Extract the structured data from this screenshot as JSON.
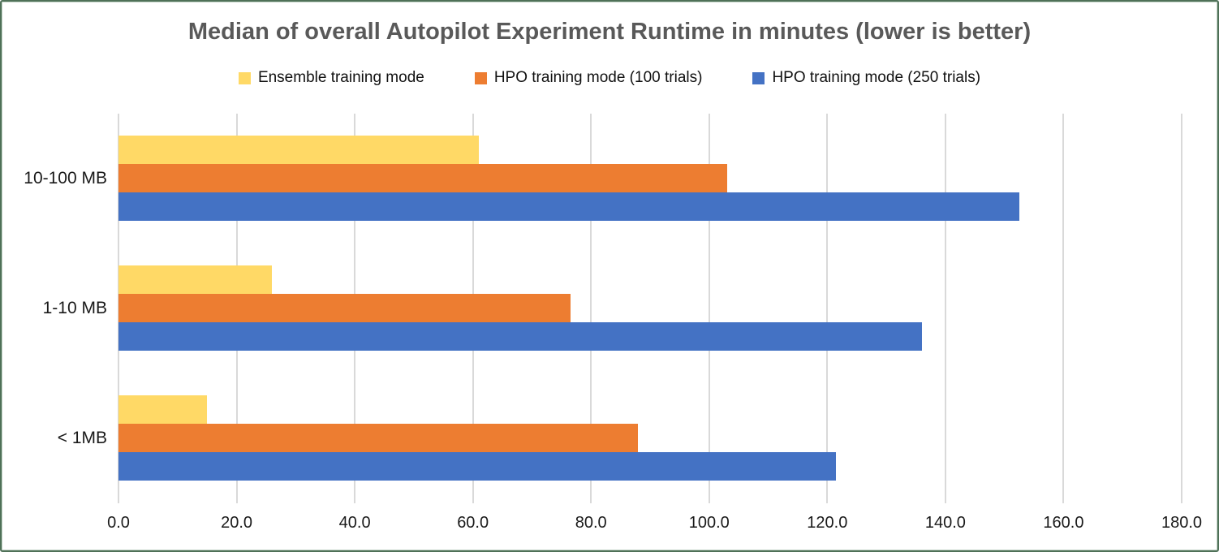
{
  "frame": {
    "border_color": "#4f7158",
    "background_color": "#ffffff"
  },
  "chart_data": {
    "type": "bar",
    "orientation": "horizontal",
    "title": "Median of overall Autopilot Experiment Runtime in minutes (lower is better)",
    "title_color": "#595959",
    "categories": [
      "10-100 MB",
      "1-10 MB",
      "< 1MB"
    ],
    "series": [
      {
        "name": "Ensemble training mode",
        "color": "#FFD966",
        "values": [
          61,
          26,
          15
        ]
      },
      {
        "name": "HPO training mode (100 trials)",
        "color": "#ED7D31",
        "values": [
          103,
          76.5,
          88
        ]
      },
      {
        "name": "HPO training mode (250 trials)",
        "color": "#4472C4",
        "values": [
          152.5,
          136,
          121.5
        ]
      }
    ],
    "x_axis": {
      "min": 0,
      "max": 180,
      "tick_step": 20,
      "tick_labels": [
        "0.0",
        "20.0",
        "40.0",
        "60.0",
        "80.0",
        "100.0",
        "120.0",
        "140.0",
        "160.0",
        "180.0"
      ]
    },
    "ylabel": "",
    "xlabel": "",
    "grid": true,
    "gridline_color": "#d9d9d9",
    "legend_position": "top",
    "text_color": "#1a1a1a"
  }
}
